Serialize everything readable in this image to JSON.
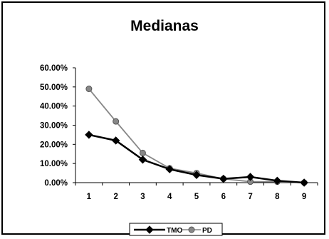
{
  "chart_data": {
    "type": "line",
    "title": "Medianas",
    "x": [
      1,
      2,
      3,
      4,
      5,
      6,
      7,
      8,
      9
    ],
    "x_tick_labels": [
      "1",
      "2",
      "3",
      "4",
      "5",
      "6",
      "7",
      "8",
      "9"
    ],
    "y_tick_labels": [
      "60.00%",
      "50.00%",
      "40.00%",
      "30.00%",
      "20.00%",
      "10.00%",
      "0.00%"
    ],
    "y_ticks": [
      0.6,
      0.5,
      0.4,
      0.3,
      0.2,
      0.1,
      0.0
    ],
    "ylim": [
      0,
      0.6
    ],
    "grid": false,
    "legend_position": "bottom",
    "series": [
      {
        "name": "TMO",
        "values": [
          0.25,
          0.22,
          0.12,
          0.07,
          0.04,
          0.02,
          0.03,
          0.01,
          0.0
        ],
        "color": "#000000",
        "marker": "diamond"
      },
      {
        "name": "PD",
        "values": [
          0.49,
          0.32,
          0.155,
          0.075,
          0.05,
          0.02,
          0.005,
          0.005,
          0.0
        ],
        "color": "#888888",
        "marker": "circle"
      }
    ]
  }
}
